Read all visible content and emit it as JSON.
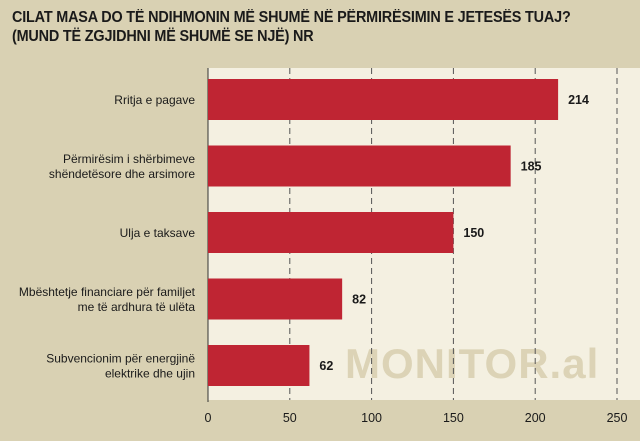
{
  "chart_data": {
    "type": "bar",
    "orientation": "horizontal",
    "title_lines": [
      "CILAT MASA DO TË NDIHMONIN MË SHUMË NË PËRMIRËSIMIN E JETESËS TUAJ?",
      "(MUND TË ZGJIDHNI MË SHUMË SE NJË) NR"
    ],
    "categories": [
      [
        "Rritja e pagave"
      ],
      [
        "Përmirësim i shërbimeve",
        "shëndetësore dhe arsimore"
      ],
      [
        "Ulja e taksave"
      ],
      [
        "Mbështetje financiare për familjet",
        "me të ardhura të ulëta"
      ],
      [
        "Subvencionim për energjinë",
        "elektrike dhe ujin"
      ]
    ],
    "values": [
      214,
      185,
      150,
      82,
      62
    ],
    "xlim": [
      0,
      250
    ],
    "xticks": [
      0,
      50,
      100,
      150,
      200,
      250
    ],
    "grid": "vertical dashed",
    "bar_color": "#bf2533"
  },
  "watermark": "MONITOR.al"
}
